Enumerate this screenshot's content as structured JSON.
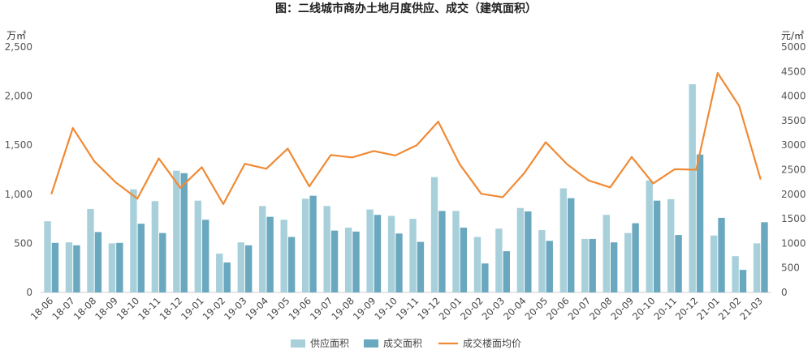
{
  "chart_data": {
    "type": "bar",
    "title": "图：二线城市商办土地月度供应、成交（建筑面积）",
    "y_left_unit": "万㎡",
    "y_right_unit": "元/㎡",
    "y_left_ticks": [
      "0",
      "500",
      "1,000",
      "1,500",
      "2,000",
      "2,500"
    ],
    "y_right_ticks": [
      "0",
      "500",
      "1000",
      "1500",
      "2000",
      "2500",
      "3000",
      "3500",
      "4000",
      "4500",
      "5000"
    ],
    "ylim_left": [
      0,
      2500
    ],
    "ylim_right": [
      0,
      5000
    ],
    "categories": [
      "18-06",
      "18-07",
      "18-08",
      "18-09",
      "18-10",
      "18-11",
      "18-12",
      "19-01",
      "19-02",
      "19-03",
      "19-04",
      "19-05",
      "19-06",
      "19-07",
      "19-08",
      "19-09",
      "19-10",
      "19-11",
      "19-12",
      "20-01",
      "20-02",
      "20-03",
      "20-04",
      "20-05",
      "20-06",
      "20-07",
      "20-08",
      "20-09",
      "20-10",
      "20-11",
      "20-12",
      "21-01",
      "21-02",
      "21-03"
    ],
    "series": [
      {
        "name": "供应面积",
        "type": "bar",
        "axis": "left",
        "color": "#a8d0db",
        "values": [
          725,
          510,
          850,
          500,
          1050,
          930,
          1240,
          935,
          395,
          510,
          880,
          740,
          955,
          880,
          660,
          845,
          780,
          750,
          1175,
          830,
          565,
          650,
          860,
          635,
          1060,
          545,
          790,
          605,
          1140,
          950,
          2120,
          580,
          370,
          500
        ]
      },
      {
        "name": "成交面积",
        "type": "bar",
        "axis": "left",
        "color": "#6aa8bf",
        "values": [
          505,
          480,
          615,
          505,
          700,
          605,
          1215,
          740,
          305,
          480,
          770,
          565,
          985,
          630,
          620,
          790,
          600,
          515,
          830,
          660,
          295,
          420,
          825,
          525,
          960,
          545,
          510,
          705,
          935,
          585,
          1405,
          760,
          230,
          715
        ]
      },
      {
        "name": "成交楼面均价",
        "type": "line",
        "axis": "right",
        "color": "#f08a35",
        "values": [
          2000,
          3350,
          2670,
          2240,
          1910,
          2730,
          2130,
          2550,
          1800,
          2620,
          2520,
          2930,
          2160,
          2800,
          2750,
          2880,
          2790,
          3000,
          3480,
          2610,
          2010,
          1940,
          2430,
          3060,
          2610,
          2280,
          2140,
          2760,
          2220,
          2510,
          2500,
          4470,
          3800,
          2300
        ]
      }
    ],
    "legend_position": "bottom-center",
    "grid": false
  }
}
